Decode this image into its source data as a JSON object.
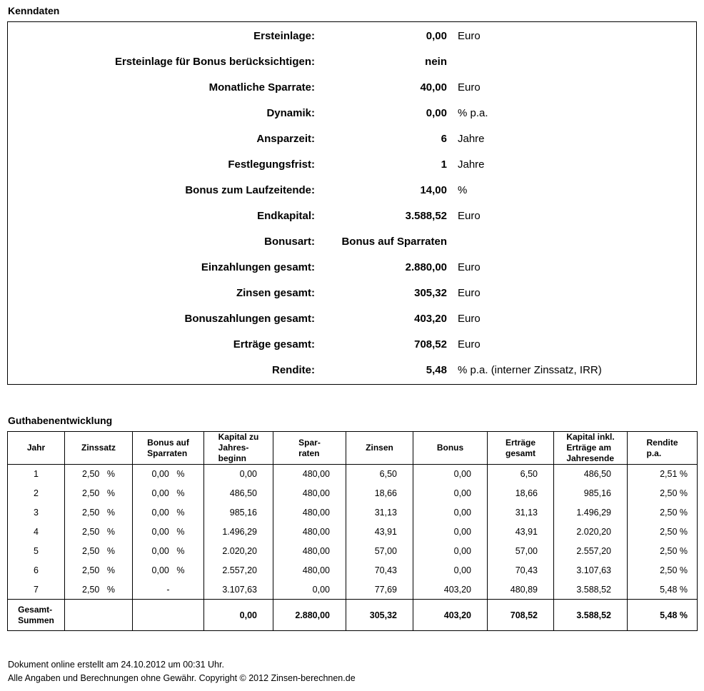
{
  "titles": {
    "kenndaten": "Kenndaten",
    "guthaben": "Guthabenentwicklung"
  },
  "kenndaten_rows": [
    {
      "label": "Ersteinlage:",
      "value": "0,00",
      "unit": "Euro"
    },
    {
      "label": "Ersteinlage für Bonus berücksichtigen:",
      "value": "nein",
      "unit": ""
    },
    {
      "label": "Monatliche Sparrate:",
      "value": "40,00",
      "unit": "Euro"
    },
    {
      "label": "Dynamik:",
      "value": "0,00",
      "unit": "% p.a."
    },
    {
      "label": "Ansparzeit:",
      "value": "6",
      "unit": "Jahre"
    },
    {
      "label": "Festlegungsfrist:",
      "value": "1",
      "unit": "Jahre"
    },
    {
      "label": "Bonus zum Laufzeitende:",
      "value": "14,00",
      "unit": "%"
    },
    {
      "label": "Endkapital:",
      "value": "3.588,52",
      "unit": "Euro"
    },
    {
      "label": "Bonusart:",
      "value": "Bonus auf Sparraten",
      "unit": ""
    },
    {
      "label": "Einzahlungen gesamt:",
      "value": "2.880,00",
      "unit": "Euro"
    },
    {
      "label": "Zinsen gesamt:",
      "value": "305,32",
      "unit": "Euro"
    },
    {
      "label": "Bonuszahlungen gesamt:",
      "value": "403,20",
      "unit": "Euro"
    },
    {
      "label": "Erträge gesamt:",
      "value": "708,52",
      "unit": "Euro"
    },
    {
      "label": "Rendite:",
      "value": "5,48",
      "unit": "% p.a. (interner Zinssatz, IRR)"
    }
  ],
  "table": {
    "headers": [
      "Jahr",
      "Zinssatz",
      "Bonus auf\nSparraten",
      "Kapital zu\nJahres-\nbeginn",
      "Spar-\nraten",
      "Zinsen",
      "Bonus",
      "Erträge\ngesamt",
      "Kapital inkl.\nErträge am\nJahresende",
      "Rendite\np.a."
    ],
    "rows": [
      [
        "1",
        "2,50 %",
        "0,00 %",
        "0,00",
        "480,00",
        "6,50",
        "0,00",
        "6,50",
        "486,50",
        "2,51 %"
      ],
      [
        "2",
        "2,50 %",
        "0,00 %",
        "486,50",
        "480,00",
        "18,66",
        "0,00",
        "18,66",
        "985,16",
        "2,50 %"
      ],
      [
        "3",
        "2,50 %",
        "0,00 %",
        "985,16",
        "480,00",
        "31,13",
        "0,00",
        "31,13",
        "1.496,29",
        "2,50 %"
      ],
      [
        "4",
        "2,50 %",
        "0,00 %",
        "1.496,29",
        "480,00",
        "43,91",
        "0,00",
        "43,91",
        "2.020,20",
        "2,50 %"
      ],
      [
        "5",
        "2,50 %",
        "0,00 %",
        "2.020,20",
        "480,00",
        "57,00",
        "0,00",
        "57,00",
        "2.557,20",
        "2,50 %"
      ],
      [
        "6",
        "2,50 %",
        "0,00 %",
        "2.557,20",
        "480,00",
        "70,43",
        "0,00",
        "70,43",
        "3.107,63",
        "2,50 %"
      ],
      [
        "7",
        "2,50 %",
        "-",
        "3.107,63",
        "0,00",
        "77,69",
        "403,20",
        "480,89",
        "3.588,52",
        "5,48 %"
      ]
    ],
    "totals": [
      "Gesamt-\nSummen",
      "",
      "",
      "0,00",
      "2.880,00",
      "305,32",
      "403,20",
      "708,52",
      "3.588,52",
      "5,48 %"
    ]
  },
  "footer": {
    "line1": "Dokument online erstellt am 24.10.2012 um 00:31 Uhr.",
    "line2": "Alle Angaben und Berechnungen ohne Gewähr. Copyright © 2012 Zinsen-berechnen.de"
  }
}
